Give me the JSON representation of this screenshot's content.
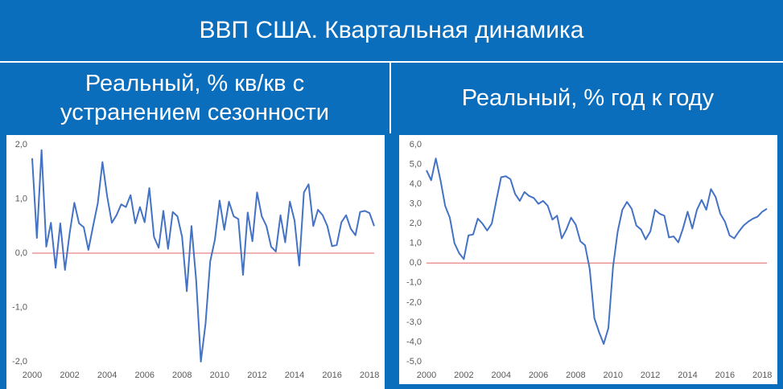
{
  "header": {
    "title": "ВВП США. Квартальная динамика"
  },
  "chart_data": [
    {
      "type": "line",
      "title": "Реальный, % кв/кв с устранением сезонности",
      "color": "#4472c4",
      "zero_line_color": "#e06666",
      "grid": false,
      "x": [
        2000,
        2000.25,
        2000.5,
        2000.75,
        2001,
        2001.25,
        2001.5,
        2001.75,
        2002,
        2002.25,
        2002.5,
        2002.75,
        2003,
        2003.25,
        2003.5,
        2003.75,
        2004,
        2004.25,
        2004.5,
        2004.75,
        2005,
        2005.25,
        2005.5,
        2005.75,
        2006,
        2006.25,
        2006.5,
        2006.75,
        2007,
        2007.25,
        2007.5,
        2007.75,
        2008,
        2008.25,
        2008.5,
        2008.75,
        2009,
        2009.25,
        2009.5,
        2009.75,
        2010,
        2010.25,
        2010.5,
        2010.75,
        2011,
        2011.25,
        2011.5,
        2011.75,
        2012,
        2012.25,
        2012.5,
        2012.75,
        2013,
        2013.25,
        2013.5,
        2013.75,
        2014,
        2014.25,
        2014.5,
        2014.75,
        2015,
        2015.25,
        2015.5,
        2015.75,
        2016,
        2016.25,
        2016.5,
        2016.75,
        2017,
        2017.25,
        2017.5,
        2017.75,
        2018,
        2018.25
      ],
      "values": [
        1.75,
        0.28,
        1.9,
        0.12,
        0.56,
        -0.27,
        0.55,
        -0.31,
        0.37,
        0.93,
        0.55,
        0.48,
        0.06,
        0.5,
        0.92,
        1.68,
        1.05,
        0.56,
        0.7,
        0.9,
        0.85,
        1.07,
        0.55,
        0.85,
        0.57,
        1.2,
        0.3,
        0.1,
        0.78,
        0.08,
        0.76,
        0.68,
        0.3,
        -0.7,
        0.5,
        -0.5,
        -2.0,
        -1.3,
        -0.15,
        0.25,
        0.97,
        0.43,
        0.95,
        0.68,
        0.63,
        -0.4,
        0.75,
        0.22,
        1.12,
        0.68,
        0.5,
        0.12,
        0.03,
        0.7,
        0.2,
        0.95,
        0.6,
        -0.23,
        1.12,
        1.27,
        0.5,
        0.8,
        0.7,
        0.5,
        0.13,
        0.15,
        0.57,
        0.7,
        0.45,
        0.33,
        0.76,
        0.78,
        0.74,
        0.5
      ],
      "xlim": [
        2000,
        2018.25
      ],
      "xticks": [
        2000,
        2002,
        2004,
        2006,
        2008,
        2010,
        2012,
        2014,
        2016,
        2018
      ],
      "ylim": [
        -2,
        2
      ],
      "yticks": [
        {
          "value": 2,
          "label": "2,0"
        },
        {
          "value": 1,
          "label": "1,0"
        },
        {
          "value": 0,
          "label": "0,0"
        },
        {
          "value": -1,
          "label": "-1,0"
        },
        {
          "value": -2,
          "label": "-2,0"
        }
      ]
    },
    {
      "type": "line",
      "title": "Реальный, % год к году",
      "color": "#4472c4",
      "zero_line_color": "#e06666",
      "grid": false,
      "x": [
        2000,
        2000.25,
        2000.5,
        2000.75,
        2001,
        2001.25,
        2001.5,
        2001.75,
        2002,
        2002.25,
        2002.5,
        2002.75,
        2003,
        2003.25,
        2003.5,
        2003.75,
        2004,
        2004.25,
        2004.5,
        2004.75,
        2005,
        2005.25,
        2005.5,
        2005.75,
        2006,
        2006.25,
        2006.5,
        2006.75,
        2007,
        2007.25,
        2007.5,
        2007.75,
        2008,
        2008.25,
        2008.5,
        2008.75,
        2009,
        2009.25,
        2009.5,
        2009.75,
        2010,
        2010.25,
        2010.5,
        2010.75,
        2011,
        2011.25,
        2011.5,
        2011.75,
        2012,
        2012.25,
        2012.5,
        2012.75,
        2013,
        2013.25,
        2013.5,
        2013.75,
        2014,
        2014.25,
        2014.5,
        2014.75,
        2015,
        2015.25,
        2015.5,
        2015.75,
        2016,
        2016.25,
        2016.5,
        2016.75,
        2017,
        2017.25,
        2017.5,
        2017.75,
        2018,
        2018.25
      ],
      "values": [
        4.7,
        4.2,
        5.3,
        4.2,
        2.9,
        2.3,
        1.0,
        0.5,
        0.2,
        1.4,
        1.45,
        2.25,
        2.0,
        1.65,
        2.0,
        3.2,
        4.35,
        4.4,
        4.25,
        3.5,
        3.15,
        3.6,
        3.4,
        3.3,
        3.0,
        3.15,
        2.9,
        2.2,
        2.4,
        1.25,
        1.7,
        2.3,
        1.95,
        1.1,
        0.9,
        -0.3,
        -2.8,
        -3.5,
        -4.1,
        -3.3,
        -0.2,
        1.6,
        2.7,
        3.1,
        2.75,
        1.9,
        1.7,
        1.2,
        1.6,
        2.7,
        2.5,
        2.4,
        1.3,
        1.35,
        1.05,
        1.75,
        2.6,
        1.75,
        2.7,
        3.2,
        2.7,
        3.75,
        3.35,
        2.5,
        2.1,
        1.4,
        1.25,
        1.6,
        1.9,
        2.1,
        2.25,
        2.35,
        2.6,
        2.75
      ],
      "xlim": [
        2000,
        2018.25
      ],
      "xticks": [
        2000,
        2002,
        2004,
        2006,
        2008,
        2010,
        2012,
        2014,
        2016,
        2018
      ],
      "ylim": [
        -5,
        6
      ],
      "yticks": [
        {
          "value": 6,
          "label": "6,0"
        },
        {
          "value": 5,
          "label": "5,0"
        },
        {
          "value": 4,
          "label": "4,0"
        },
        {
          "value": 3,
          "label": "3,0"
        },
        {
          "value": 2,
          "label": "2,0"
        },
        {
          "value": 1,
          "label": "1,0"
        },
        {
          "value": 0,
          "label": "0,0"
        },
        {
          "value": -1,
          "label": "-1,0"
        },
        {
          "value": -2,
          "label": "-2,0"
        },
        {
          "value": -3,
          "label": "-3,0"
        },
        {
          "value": -4,
          "label": "-4,0"
        },
        {
          "value": -5,
          "label": "-5,0"
        }
      ]
    }
  ]
}
